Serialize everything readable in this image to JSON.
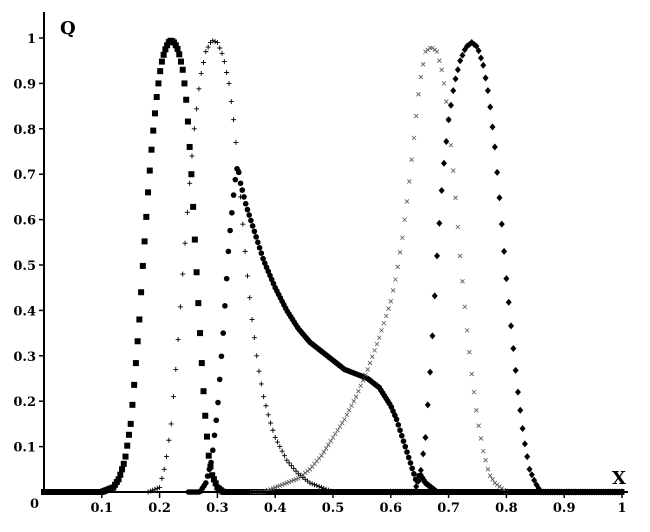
{
  "chart_data": {
    "type": "scatter",
    "xlabel": "X",
    "ylabel": "Q",
    "xlim": [
      0,
      1
    ],
    "ylim": [
      0,
      1
    ],
    "origin_label": "0",
    "x_ticks": [
      "0.1",
      "0.2",
      "0.3",
      "0.4",
      "0.5",
      "0.6",
      "0.7",
      "0.8",
      "0.9",
      "1"
    ],
    "y_ticks": [
      "0.1",
      "0.2",
      "0.3",
      "0.4",
      "0.5",
      "0.6",
      "0.7",
      "0.8",
      "0.9",
      "1"
    ],
    "grid": false,
    "series": [
      {
        "marker": "square",
        "x": [
          0.0,
          0.1,
          0.12,
          0.13,
          0.14,
          0.15,
          0.155,
          0.16,
          0.165,
          0.17,
          0.175,
          0.18,
          0.185,
          0.19,
          0.195,
          0.2,
          0.205,
          0.21,
          0.215,
          0.22,
          0.225,
          0.23,
          0.235,
          0.24,
          0.245,
          0.25,
          0.255,
          0.26,
          0.265,
          0.27,
          0.275,
          0.28,
          0.285,
          0.29,
          0.3,
          0.31,
          0.32,
          0.4,
          0.6,
          0.8,
          1.0
        ],
        "y": [
          0.0,
          0.0,
          0.01,
          0.03,
          0.07,
          0.15,
          0.22,
          0.3,
          0.38,
          0.48,
          0.57,
          0.66,
          0.74,
          0.81,
          0.87,
          0.92,
          0.955,
          0.975,
          0.99,
          0.995,
          0.99,
          0.98,
          0.96,
          0.93,
          0.88,
          0.8,
          0.7,
          0.58,
          0.46,
          0.35,
          0.24,
          0.15,
          0.08,
          0.04,
          0.01,
          0.0,
          0.0,
          0.0,
          0.0,
          0.0,
          0.0
        ]
      },
      {
        "marker": "plus",
        "x": [
          0.18,
          0.2,
          0.21,
          0.22,
          0.23,
          0.24,
          0.25,
          0.26,
          0.27,
          0.28,
          0.29,
          0.3,
          0.31,
          0.32,
          0.33,
          0.34,
          0.35,
          0.36,
          0.37,
          0.38,
          0.39,
          0.4,
          0.42,
          0.44,
          0.46,
          0.48,
          0.5
        ],
        "y": [
          0.0,
          0.01,
          0.06,
          0.15,
          0.3,
          0.48,
          0.65,
          0.8,
          0.91,
          0.97,
          0.995,
          0.99,
          0.96,
          0.9,
          0.8,
          0.65,
          0.5,
          0.38,
          0.28,
          0.21,
          0.16,
          0.12,
          0.07,
          0.04,
          0.02,
          0.01,
          0.0
        ]
      },
      {
        "marker": "circle",
        "x": [
          0.25,
          0.27,
          0.28,
          0.29,
          0.3,
          0.31,
          0.32,
          0.33,
          0.335,
          0.34,
          0.35,
          0.36,
          0.37,
          0.38,
          0.4,
          0.42,
          0.44,
          0.46,
          0.48,
          0.5,
          0.52,
          0.54,
          0.56,
          0.57,
          0.58,
          0.59,
          0.6,
          0.61,
          0.62,
          0.63,
          0.64,
          0.645,
          0.65,
          0.66,
          0.67,
          0.68,
          0.7
        ],
        "y": [
          0.0,
          0.0,
          0.02,
          0.07,
          0.18,
          0.35,
          0.55,
          0.68,
          0.72,
          0.68,
          0.63,
          0.59,
          0.55,
          0.51,
          0.45,
          0.4,
          0.36,
          0.33,
          0.31,
          0.29,
          0.27,
          0.26,
          0.25,
          0.24,
          0.23,
          0.21,
          0.19,
          0.16,
          0.12,
          0.08,
          0.04,
          0.02,
          0.04,
          0.02,
          0.01,
          0.0,
          0.0
        ]
      },
      {
        "marker": "x",
        "x": [
          0.36,
          0.38,
          0.4,
          0.42,
          0.44,
          0.46,
          0.48,
          0.5,
          0.52,
          0.54,
          0.56,
          0.58,
          0.6,
          0.61,
          0.62,
          0.63,
          0.64,
          0.65,
          0.66,
          0.67,
          0.68,
          0.69,
          0.7,
          0.71,
          0.72,
          0.73,
          0.74,
          0.75,
          0.76,
          0.77,
          0.78,
          0.79,
          0.8
        ],
        "y": [
          0.0,
          0.0,
          0.01,
          0.02,
          0.03,
          0.05,
          0.08,
          0.12,
          0.16,
          0.21,
          0.27,
          0.34,
          0.42,
          0.48,
          0.56,
          0.66,
          0.78,
          0.9,
          0.97,
          0.98,
          0.97,
          0.92,
          0.82,
          0.68,
          0.52,
          0.38,
          0.26,
          0.16,
          0.09,
          0.04,
          0.02,
          0.01,
          0.0
        ]
      },
      {
        "marker": "diamond",
        "x": [
          0.6,
          0.64,
          0.65,
          0.66,
          0.67,
          0.68,
          0.69,
          0.7,
          0.71,
          0.72,
          0.73,
          0.74,
          0.745,
          0.75,
          0.76,
          0.77,
          0.78,
          0.79,
          0.8,
          0.81,
          0.82,
          0.83,
          0.84,
          0.85,
          0.86,
          0.88,
          0.9,
          1.0
        ],
        "y": [
          0.0,
          0.0,
          0.03,
          0.12,
          0.3,
          0.52,
          0.7,
          0.82,
          0.9,
          0.95,
          0.98,
          0.99,
          0.985,
          0.98,
          0.94,
          0.87,
          0.76,
          0.62,
          0.47,
          0.34,
          0.22,
          0.12,
          0.05,
          0.02,
          0.0,
          0.0,
          0.0,
          0.0
        ]
      }
    ]
  }
}
